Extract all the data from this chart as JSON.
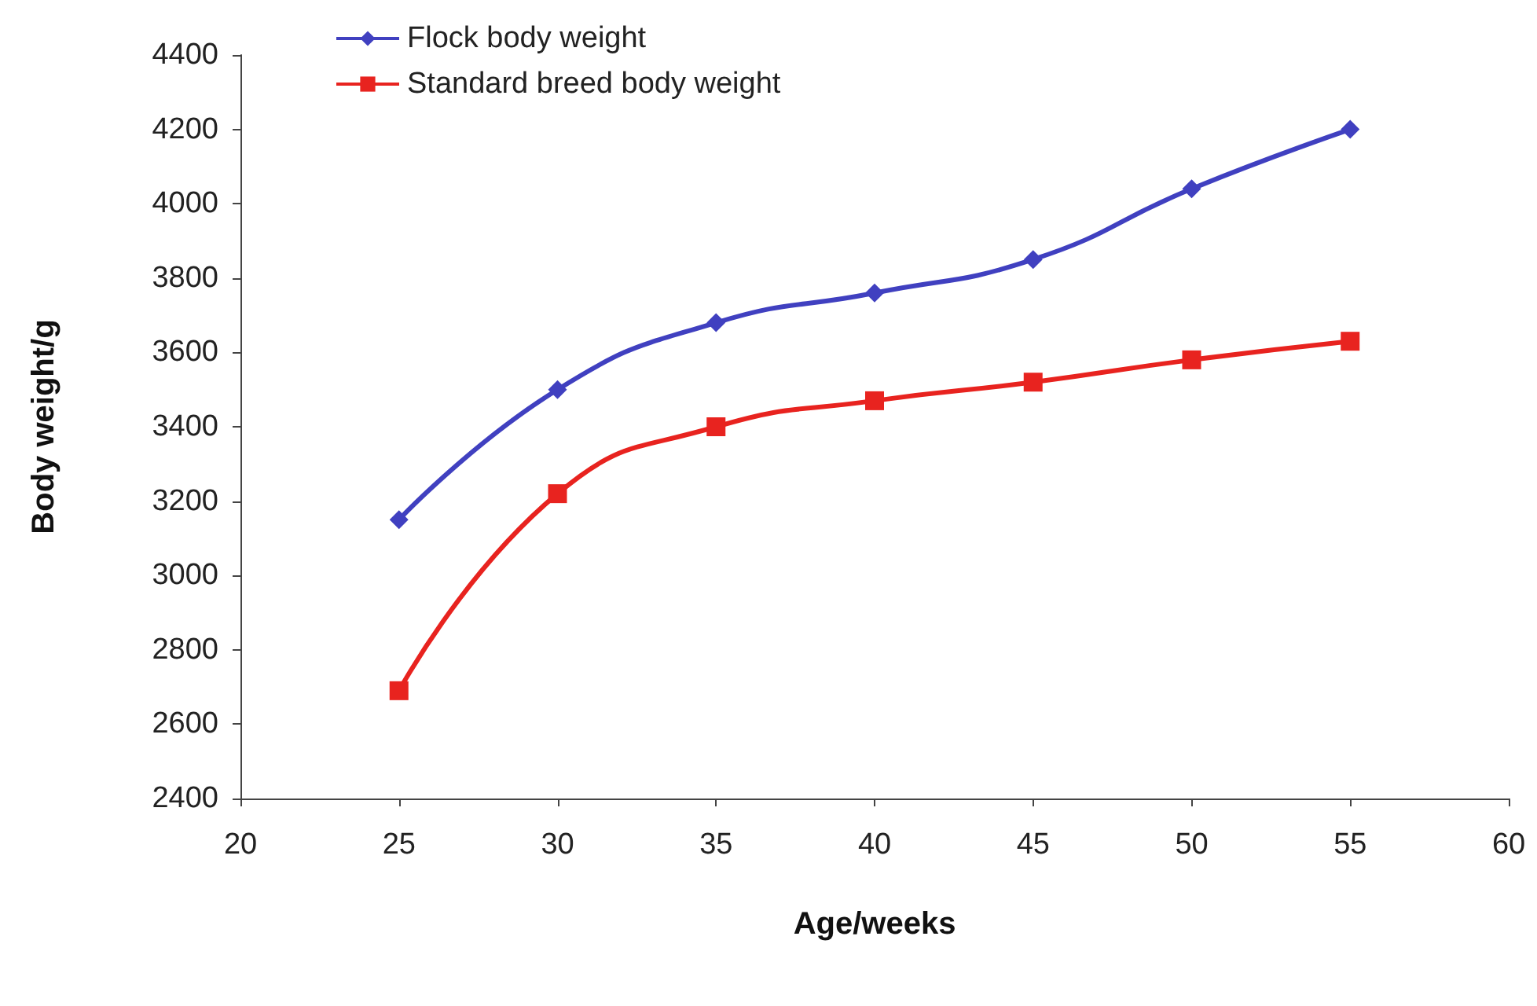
{
  "chart_data": {
    "type": "line",
    "xlabel": "Age/weeks",
    "ylabel": "Body weight/g",
    "x": [
      25,
      30,
      35,
      40,
      45,
      50,
      55
    ],
    "series": [
      {
        "name": "Flock body weight",
        "color": "#4040c0",
        "marker": "diamond",
        "values": [
          3150,
          3500,
          3680,
          3760,
          3850,
          4040,
          4200
        ]
      },
      {
        "name": "Standard breed body weight",
        "color": "#e8231f",
        "marker": "square",
        "values": [
          2690,
          3220,
          3400,
          3470,
          3520,
          3580,
          3630
        ]
      }
    ],
    "xlim": [
      20,
      60
    ],
    "xticks": [
      20,
      25,
      30,
      35,
      40,
      45,
      50,
      55,
      60
    ],
    "ylim": [
      2400,
      4400
    ],
    "yticks": [
      2400,
      2600,
      2800,
      3000,
      3200,
      3400,
      3600,
      3800,
      4000,
      4200,
      4400
    ],
    "grid": false,
    "legend": "top left"
  }
}
